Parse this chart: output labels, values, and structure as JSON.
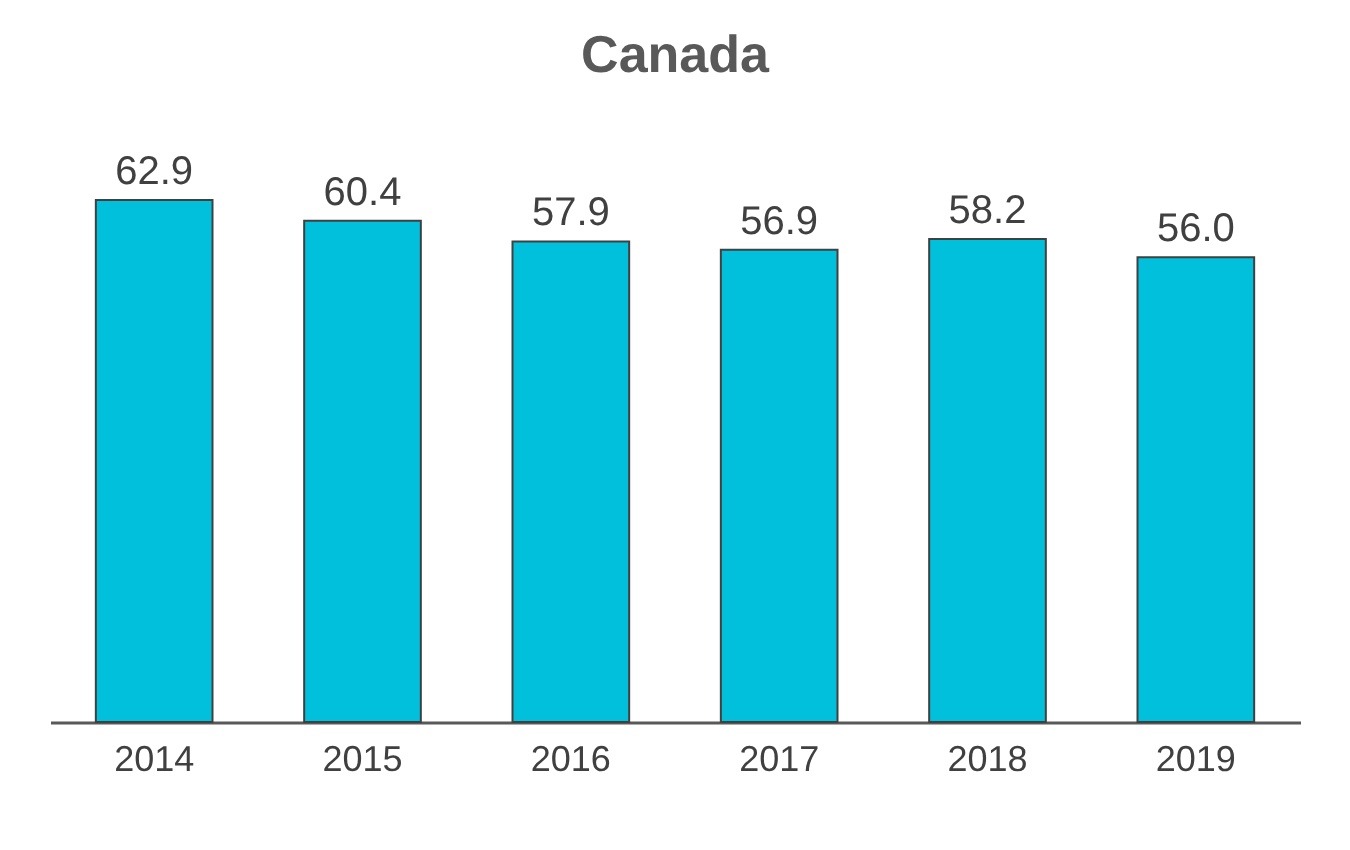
{
  "chart_data": {
    "type": "bar",
    "title": "Canada",
    "categories": [
      "2014",
      "2015",
      "2016",
      "2017",
      "2018",
      "2019"
    ],
    "values": [
      62.9,
      60.4,
      57.9,
      56.9,
      58.2,
      56.0
    ],
    "value_labels": [
      "62.9",
      "60.4",
      "57.9",
      "56.9",
      "58.2",
      "56.0"
    ],
    "color": "#00c0dc",
    "grid": false
  }
}
